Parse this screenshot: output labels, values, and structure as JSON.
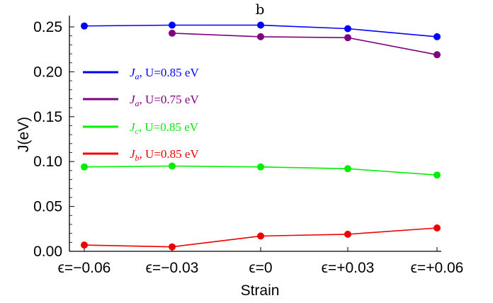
{
  "chart_data": {
    "type": "line",
    "title": "b",
    "xlabel": "Strain",
    "ylabel": "J(eV)",
    "categories": [
      "ϵ=−0.06",
      "ϵ=−0.03",
      "ϵ=0",
      "ϵ=+0.03",
      "ϵ=+0.06"
    ],
    "ylim": [
      0.0,
      0.26
    ],
    "yticks": [
      "0.00",
      "0.05",
      "0.10",
      "0.15",
      "0.20",
      "0.25"
    ],
    "grid": false,
    "legend_position": "left",
    "series": [
      {
        "symbol": "J",
        "subscript": "a",
        "suffix": ", U=0.85 eV",
        "color": "#0000ff",
        "values": [
          0.251,
          0.252,
          0.252,
          0.248,
          0.239
        ]
      },
      {
        "symbol": "J",
        "subscript": "a",
        "suffix": ", U=0.75 eV",
        "color": "#800080",
        "values": [
          null,
          0.243,
          0.239,
          0.238,
          0.219
        ]
      },
      {
        "symbol": "J",
        "subscript": "c",
        "suffix": ", U=0.85 eV",
        "color": "#00ee00",
        "values": [
          0.094,
          0.095,
          0.094,
          0.092,
          0.085
        ]
      },
      {
        "symbol": "J",
        "subscript": "b",
        "suffix": ", U=0.85 eV",
        "color": "#ee0000",
        "values": [
          0.007,
          0.005,
          0.017,
          0.019,
          0.026
        ]
      }
    ]
  }
}
